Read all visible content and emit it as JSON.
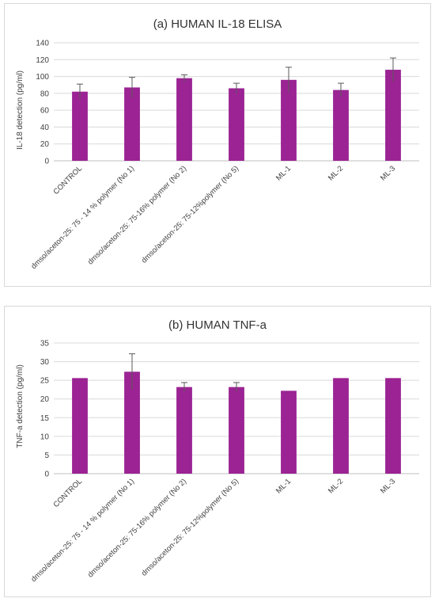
{
  "chart_data": [
    {
      "type": "bar",
      "title": "(a) HUMAN IL-18 ELISA",
      "ylabel": "IL-18 detection (pg/ml)",
      "xlabel": "",
      "ylim": [
        0,
        140
      ],
      "yticks": [
        0,
        20,
        40,
        60,
        80,
        100,
        120,
        140
      ],
      "grid": true,
      "bar_color": "#9b2393",
      "categories": [
        "CONTROL",
        "dmso/aceton-25: 75 - 14 % polymer (No 1)",
        "dmso/aceton-25: 75-16% polymer (No 2)",
        "dmso/aceton-25: 75-12%polymer (No 5)",
        "ML-1",
        "ML-2",
        "ML-3"
      ],
      "values": [
        82,
        87,
        98,
        86,
        96,
        84,
        108
      ],
      "errors": [
        9,
        12,
        4,
        6,
        15,
        8,
        14
      ]
    },
    {
      "type": "bar",
      "title": "(b) HUMAN TNF-a",
      "ylabel": "TNF-a detection (pg/ml)",
      "xlabel": "",
      "ylim": [
        0,
        35
      ],
      "yticks": [
        0,
        5,
        10,
        15,
        20,
        25,
        30,
        35
      ],
      "grid": true,
      "bar_color": "#9b2393",
      "categories": [
        "CONTROL",
        "dmso/aceton-25: 75 - 14 % polymer (No 1)",
        "dmso/aceton-25: 75-16% polymer (No 2)",
        "dmso/aceton-25: 75-12%polymer (No 5)",
        "ML-1",
        "ML-2",
        "ML-3"
      ],
      "values": [
        25.6,
        27.3,
        23.2,
        23.2,
        22.2,
        25.6,
        25.6
      ],
      "errors": [
        0,
        4.8,
        1.2,
        1.2,
        0,
        0,
        0
      ]
    }
  ]
}
